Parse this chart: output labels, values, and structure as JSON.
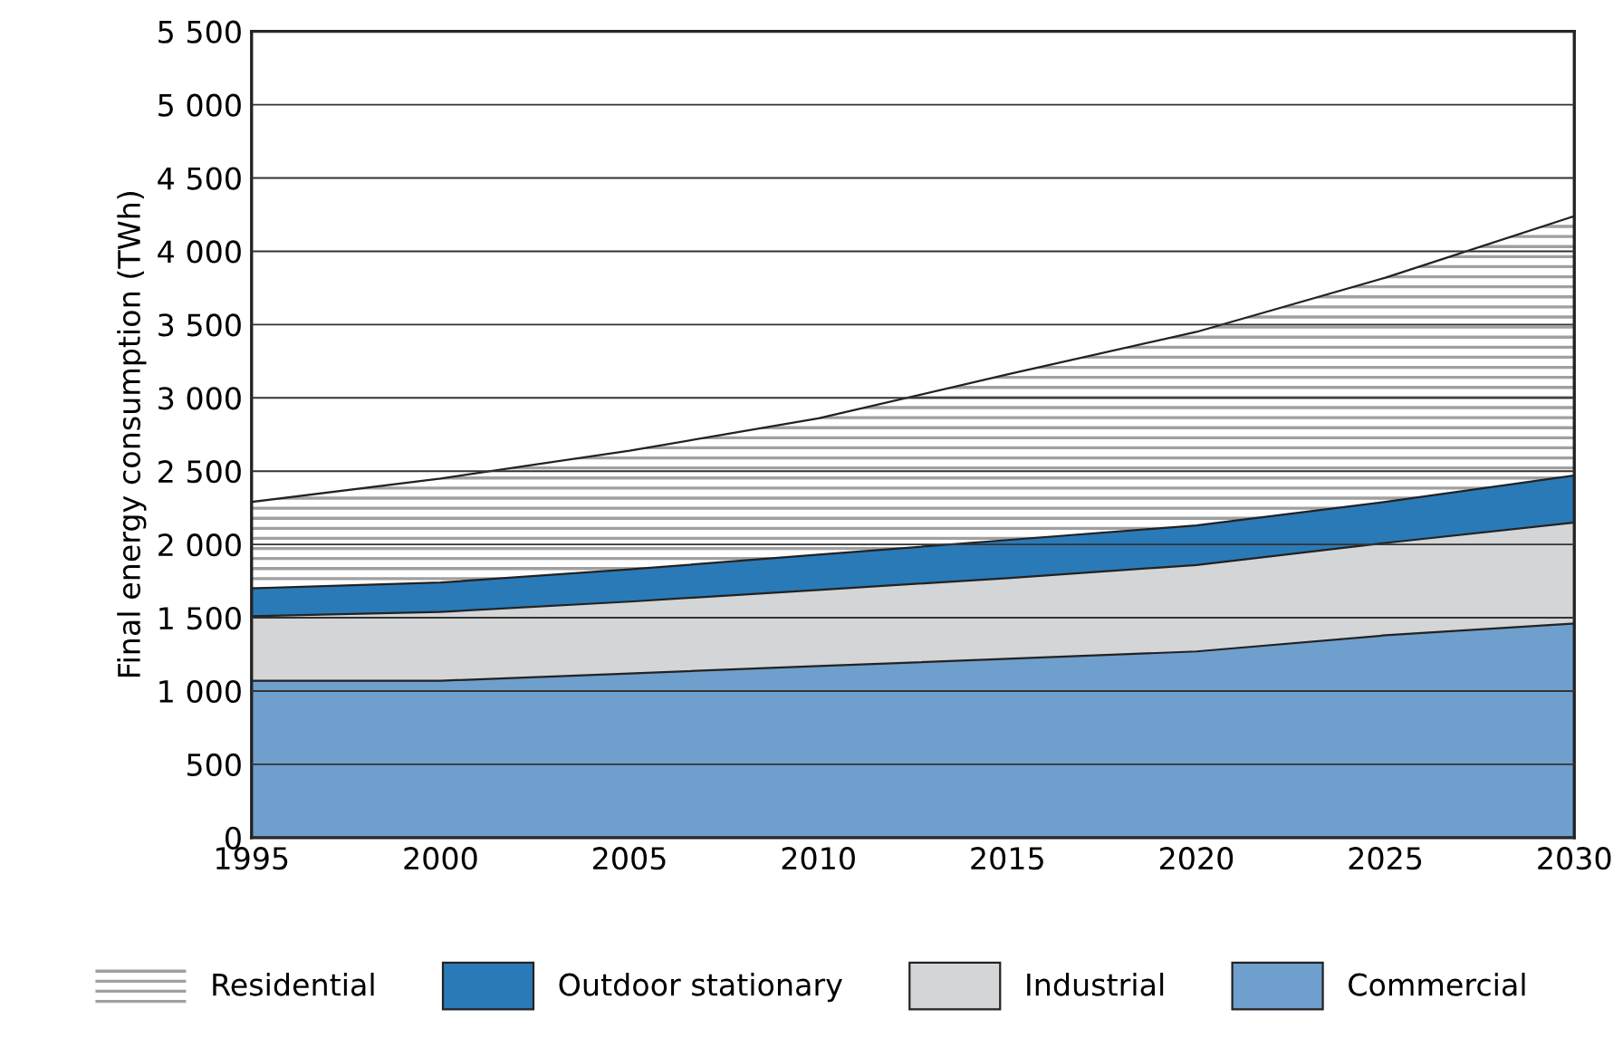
{
  "chart_data": {
    "type": "area",
    "stacked": true,
    "ylabel": "Final energy consumption (TWh)",
    "x": [
      1995,
      2000,
      2005,
      2010,
      2015,
      2020,
      2025,
      2030
    ],
    "series": [
      {
        "name": "Commercial",
        "color": "#6f9fcc",
        "values": [
          1070,
          1070,
          1120,
          1170,
          1220,
          1270,
          1380,
          1460
        ]
      },
      {
        "name": "Industrial",
        "color": "#d4d5d7",
        "values": [
          440,
          470,
          490,
          520,
          550,
          590,
          630,
          690
        ]
      },
      {
        "name": "Outdoor stationary",
        "color": "#2a7ab8",
        "values": [
          190,
          200,
          220,
          240,
          260,
          270,
          280,
          320
        ]
      },
      {
        "name": "Residential",
        "color": "#a0a0a0",
        "values": [
          590,
          710,
          810,
          930,
          1130,
          1320,
          1530,
          1770
        ]
      }
    ],
    "xlim": [
      1995,
      2030
    ],
    "xticks": [
      1995,
      2000,
      2005,
      2010,
      2015,
      2020,
      2025,
      2030
    ],
    "ylim": [
      0,
      5500
    ],
    "yticks": [
      0,
      500,
      {
        "value": 1000,
        "label": "1 000"
      },
      {
        "value": 1500,
        "label": "1 500"
      },
      {
        "value": 2000,
        "label": "2 000"
      },
      {
        "value": 2500,
        "label": "2 500"
      },
      {
        "value": 3000,
        "label": "3 000"
      },
      {
        "value": 3500,
        "label": "3 500"
      },
      {
        "value": 4000,
        "label": "4 000"
      },
      {
        "value": 4500,
        "label": "4 500"
      },
      {
        "value": 5000,
        "label": "5 000"
      },
      {
        "value": 5500,
        "label": "5 500"
      }
    ],
    "grid": "y",
    "legend": "bottom"
  }
}
